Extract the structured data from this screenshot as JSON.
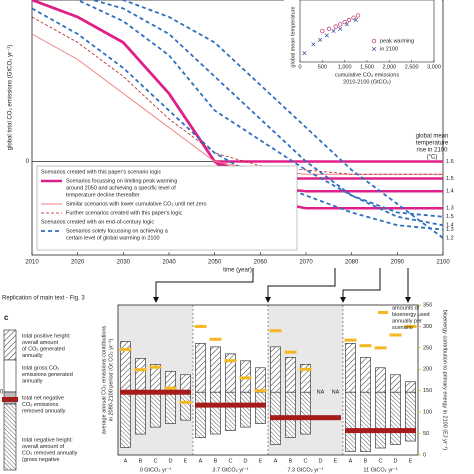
{
  "chart_data": [
    {
      "type": "line",
      "ylabel": "global total CO₂ emissions (GtCO₂ yr⁻¹)",
      "xlabel": "time (year)",
      "x": [
        2010,
        2020,
        2030,
        2040,
        2050,
        2060,
        2070,
        2080,
        2090,
        2100
      ],
      "xlim": [
        2010,
        2100
      ],
      "xticks": [
        2010,
        2020,
        2030,
        2040,
        2050,
        2060,
        2070,
        2080,
        2090,
        2100
      ],
      "ylim": [
        -22,
        38
      ],
      "yticks": [
        0
      ],
      "right_label": [
        "global mean",
        "temperature",
        "rise in 2100",
        "(°C)"
      ],
      "series": [
        {
          "color": "#e0208a",
          "width": 2.5,
          "dash": "none",
          "values": [
            38,
            34,
            28,
            16,
            0,
            0,
            0,
            0,
            0,
            0
          ],
          "end_label": "1.6"
        },
        {
          "color": "#e0208a",
          "width": 2.5,
          "dash": "none",
          "values": [
            38,
            34,
            28,
            16,
            0,
            -4,
            -4,
            -4,
            -4,
            -4
          ],
          "end_label": "1.5"
        },
        {
          "color": "#e0208a",
          "width": 2.5,
          "dash": "none",
          "values": [
            38,
            34,
            28,
            16,
            0,
            -6,
            -7,
            -7,
            -7,
            -7
          ],
          "end_label": "1.4"
        },
        {
          "color": "#e0208a",
          "width": 2.5,
          "dash": "none",
          "values": [
            38,
            34,
            28,
            16,
            0,
            -9,
            -11,
            -11,
            -11,
            -11
          ],
          "end_label": "1.3"
        },
        {
          "color": "#f08080",
          "width": 1,
          "dash": "none",
          "values": [
            30,
            24,
            16,
            8,
            0,
            -2,
            -3,
            -3,
            -3,
            -3
          ]
        },
        {
          "color": "#b22222",
          "width": 0.8,
          "dash": "3 2",
          "values": [
            34,
            28,
            20,
            10,
            2,
            -1,
            -2,
            -3,
            -3,
            -3
          ]
        },
        {
          "color": "#2f6fc0",
          "width": 1.8,
          "dash": "4 3",
          "values": [
            40,
            38,
            33,
            25,
            12,
            5,
            -2,
            -8,
            -12,
            -13
          ],
          "end_label": "1.5"
        },
        {
          "color": "#2f6fc0",
          "width": 1.8,
          "dash": "4 3",
          "values": [
            40,
            39,
            36,
            30,
            20,
            10,
            0,
            -8,
            -13,
            -15
          ],
          "end_label": "1.4"
        },
        {
          "color": "#2f6fc0",
          "width": 1.8,
          "dash": "4 3",
          "values": [
            36,
            30,
            22,
            12,
            2,
            -4,
            -8,
            -12,
            -15,
            -16
          ],
          "end_label": "1.3"
        },
        {
          "color": "#2f6fc0",
          "width": 1.8,
          "dash": "4 3",
          "values": [
            40,
            40,
            38,
            34,
            28,
            18,
            8,
            -2,
            -10,
            -18
          ],
          "end_label": "1.2"
        }
      ],
      "legend": [
        {
          "text": [
            "Scenarios created with this paper's scenario logic"
          ]
        },
        {
          "text": [
            "Scenarios focussing on limiting peak warming",
            "around 2050 and achieving a specific level of",
            "temperature decline thereafter"
          ],
          "color": "#e0208a",
          "width": 2.5,
          "dash": "none"
        },
        {
          "text": [
            "Similar scenarios with lower cumulative CO₂ until net zero"
          ],
          "color": "#f08080",
          "width": 1,
          "dash": "none"
        },
        {
          "text": [
            "Further scenarios created with this paper's logic"
          ],
          "color": "#b22222",
          "width": 0.8,
          "dash": "3 2"
        },
        {
          "text": [
            "Scenarios created with an end-of-century logic"
          ]
        },
        {
          "text": [
            "Scenarios solely focussing on achieving a",
            "certain level of global warming in 2100"
          ],
          "color": "#2f6fc0",
          "width": 1.8,
          "dash": "4 3"
        }
      ]
    },
    {
      "type": "scatter",
      "ylabel": "global mean temperature",
      "xlabel": [
        "cumulative CO₂ emissions",
        "2010-2100 (GtCO₂)"
      ],
      "xlim": [
        0,
        3000
      ],
      "xticks": [
        0,
        500,
        {
          "value": 1000,
          "label": "1,000"
        },
        {
          "value": 1500,
          "label": "1,500"
        },
        {
          "value": 2000,
          "label": "2,000"
        },
        {
          "value": 2500,
          "label": "2,500"
        },
        {
          "value": 3000,
          "label": "3,000"
        }
      ],
      "ylim": [
        0.8,
        2.2
      ],
      "series": [
        {
          "name": "peak warming",
          "marker": "circle",
          "color": "#c0306a",
          "x": [
            500,
            650,
            800,
            900,
            1000,
            1100,
            1200,
            1300
          ],
          "values": [
            1.5,
            1.55,
            1.6,
            1.65,
            1.7,
            1.75,
            1.8,
            1.85
          ]
        },
        {
          "name": "in 2100",
          "marker": "cross",
          "color": "#2f4fa0",
          "x": [
            100,
            300,
            450,
            600,
            750,
            900,
            1050,
            1250
          ],
          "values": [
            1.0,
            1.2,
            1.3,
            1.4,
            1.5,
            1.55,
            1.65,
            1.75
          ]
        }
      ]
    },
    {
      "type": "bar",
      "title": "Replication of main text - Fig. 3",
      "panel": "c",
      "ylabel": [
        "average annual CO₂ emissions contributions",
        "in 2080-2100 period (Gt CO₂ yr⁻¹)"
      ],
      "y2label": "bioenergy contribution to primary energy in 2100 (EJ yr⁻¹)",
      "ylim": [
        -18,
        25
      ],
      "y2lim": [
        0,
        350
      ],
      "y2ticks": [
        0,
        50,
        100,
        150,
        200,
        250,
        300,
        350
      ],
      "categories": [
        "A",
        "B",
        "C",
        "D",
        "E",
        "A",
        "B",
        "C",
        "D",
        "E",
        "A",
        "B",
        "C",
        "D",
        "E",
        "A",
        "B",
        "C",
        "D",
        "E"
      ],
      "groups": [
        "0 GtCO₂ yr⁻¹",
        "3.7 GtCO₂ yr⁻¹",
        "7.3 GtCO₂ yr⁻¹",
        "11 GtCO₂ yr⁻¹"
      ],
      "positive_values": [
        14.5,
        9.7,
        8,
        6,
        5,
        14,
        13,
        11,
        9,
        7,
        13,
        10,
        8,
        null,
        null,
        14,
        10,
        7,
        5,
        3
      ],
      "negative_values": [
        -15.8,
        -12,
        -10,
        -9,
        -8,
        -13,
        -12,
        -11,
        -10,
        -9,
        -15,
        -13,
        -12,
        null,
        null,
        -17,
        -17,
        -16,
        -15,
        -14
      ],
      "net_values": [
        0,
        -3.7,
        -7.3,
        -11
      ],
      "bioenergy_values": [
        246,
        199,
        205,
        156,
        123,
        300,
        270,
        220,
        180,
        150,
        290,
        240,
        200,
        null,
        null,
        268,
        255,
        250,
        280,
        300
      ],
      "na_label": "NA",
      "bioenergy_note": [
        "amounts of",
        "bioenergy used",
        "annually per",
        "scenario"
      ],
      "schematic": {
        "zero": "0",
        "notes": [
          [
            "total positive height:",
            "overall amount",
            "of CO₂ generated",
            "annually"
          ],
          [
            "total gross CO₂",
            "emissions generated",
            "annually"
          ],
          [
            "total net negative",
            "CO₂ emissions",
            "removed annually"
          ],
          [
            "total negative height:",
            "overall amount of",
            "CO₂ removed annually",
            "(gross negative"
          ]
        ]
      }
    }
  ]
}
